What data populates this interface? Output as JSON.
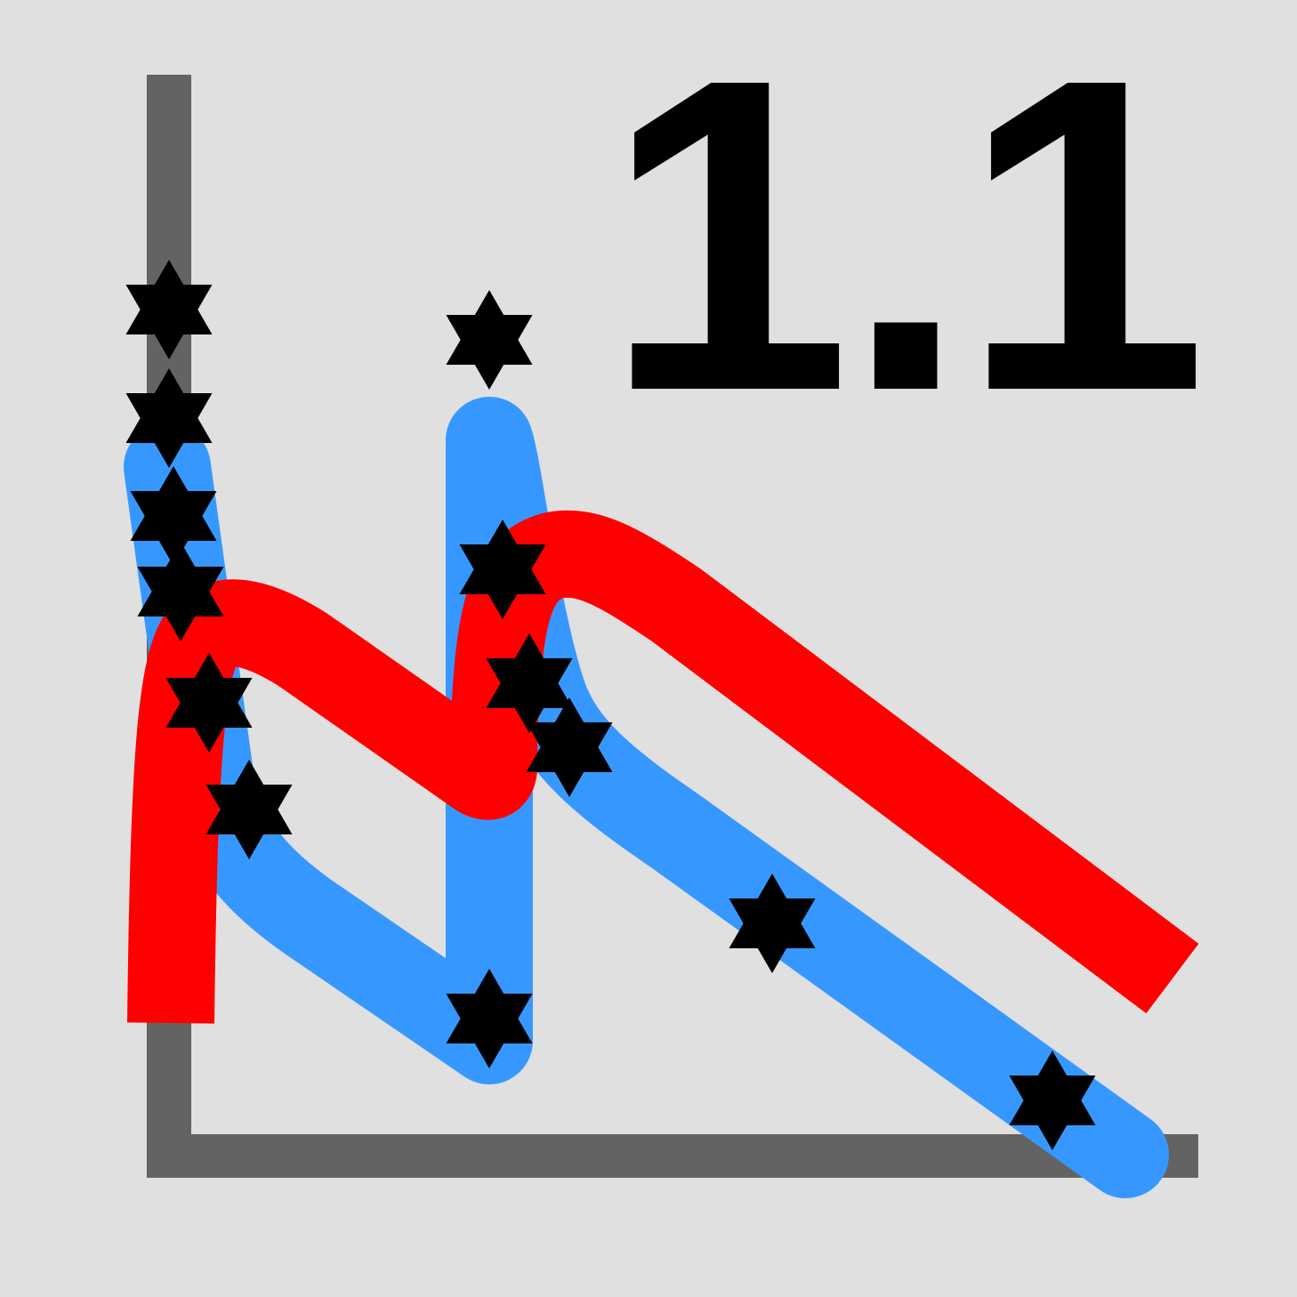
{
  "version_text": "1.1",
  "colors": {
    "background": "#e0e0e0",
    "axis": "#636363",
    "blue_curve": "#3698ff",
    "red_curve": "#ff0000",
    "markers": "#000000"
  },
  "icons": [
    "axis-frame",
    "blue-curve",
    "red-curve",
    "star-of-david-markers"
  ]
}
